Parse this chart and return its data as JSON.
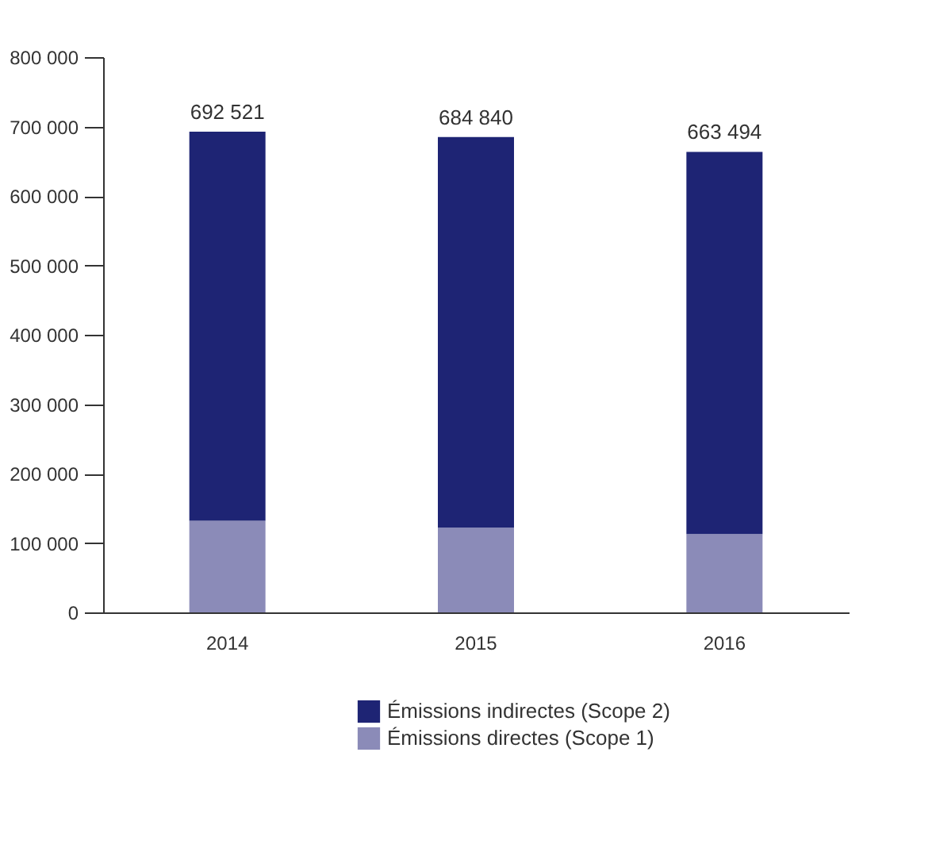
{
  "chart_data": {
    "type": "bar",
    "stacked": true,
    "categories": [
      "2014",
      "2015",
      "2016"
    ],
    "series": [
      {
        "name": "Émissions directes (Scope 1)",
        "color": "#8b8bb8",
        "values": [
          132000,
          122000,
          113000
        ]
      },
      {
        "name": "Émissions indirectes (Scope 2)",
        "color": "#1e2474",
        "values": [
          560521,
          562840,
          550494
        ]
      }
    ],
    "totals": [
      "692 521",
      "684 840",
      "663 494"
    ],
    "ylim": [
      0,
      800000
    ],
    "yticks": [
      {
        "value": 0,
        "label": "0"
      },
      {
        "value": 100000,
        "label": "100 000"
      },
      {
        "value": 200000,
        "label": "200 000"
      },
      {
        "value": 300000,
        "label": "300 000"
      },
      {
        "value": 400000,
        "label": "400 000"
      },
      {
        "value": 500000,
        "label": "500 000"
      },
      {
        "value": 600000,
        "label": "600 000"
      },
      {
        "value": 700000,
        "label": "700 000"
      },
      {
        "value": 800000,
        "label": "800 000"
      }
    ],
    "grid": false,
    "legend": "bottom"
  }
}
